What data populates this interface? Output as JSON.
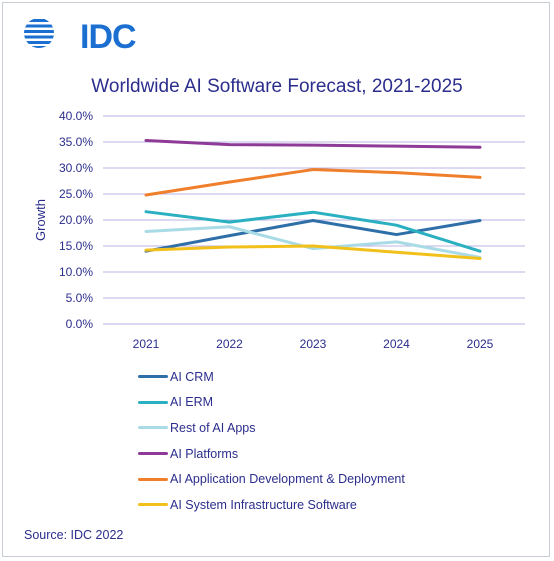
{
  "logo": {
    "text": "IDC",
    "color": "#1b6fd1"
  },
  "source": "Source: IDC 2022",
  "chart_data": {
    "type": "line",
    "title": "Worldwide AI Software Forecast, 2021-2025",
    "xlabel": "",
    "ylabel": "Growth",
    "x": [
      "2021",
      "2022",
      "2023",
      "2024",
      "2025"
    ],
    "ylim": [
      0,
      40
    ],
    "yticks": [
      "0.0%",
      "5.0%",
      "10.0%",
      "15.0%",
      "20.0%",
      "25.0%",
      "30.0%",
      "35.0%",
      "40.0%"
    ],
    "grid": true,
    "legend_position": "bottom",
    "series": [
      {
        "name": "AI CRM",
        "color": "#2f6fa8",
        "values": [
          14.0,
          17.0,
          19.9,
          17.2,
          19.9
        ]
      },
      {
        "name": "AI ERM",
        "color": "#2bb0c2",
        "values": [
          21.6,
          19.6,
          21.5,
          19.0,
          14.0
        ]
      },
      {
        "name": "Rest of AI Apps",
        "color": "#a9dbe6",
        "values": [
          17.8,
          18.7,
          14.5,
          15.8,
          12.8
        ]
      },
      {
        "name": "AI Platforms",
        "color": "#8e3a97",
        "values": [
          35.3,
          34.5,
          34.4,
          34.2,
          34.0
        ]
      },
      {
        "name": "AI Application Development & Deployment",
        "color": "#f07f2c",
        "values": [
          24.8,
          27.3,
          29.7,
          29.1,
          28.2
        ]
      },
      {
        "name": "AI System Infrastructure Software",
        "color": "#f2c01b",
        "values": [
          14.2,
          14.8,
          15.0,
          13.8,
          12.6
        ]
      }
    ]
  }
}
